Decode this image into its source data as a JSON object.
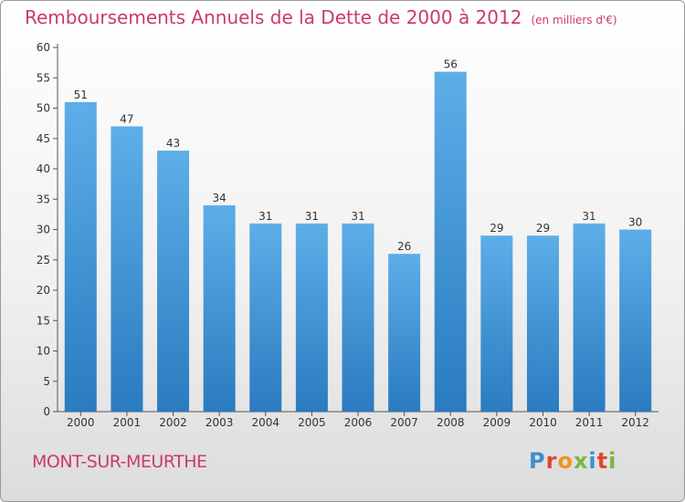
{
  "title": "Remboursements Annuels de la Dette de 2000 à 2012",
  "subtitle": "(en milliers d'€)",
  "commune": "MONT-SUR-MEURTHE",
  "logo": "Proxiti",
  "colors": {
    "title": "#cc3a6b",
    "bar_top": "#5daee8",
    "bar_bottom": "#2a7bc0",
    "logo_letters": [
      "#3a8fd0",
      "#e0462e",
      "#f19422",
      "#7ab83a",
      "#3a8fd0",
      "#e0462e",
      "#7ab83a"
    ]
  },
  "chart_data": {
    "type": "bar",
    "title": "Remboursements Annuels de la Dette de 2000 à 2012",
    "subtitle": "(en milliers d'€)",
    "categories": [
      "2000",
      "2001",
      "2002",
      "2003",
      "2004",
      "2005",
      "2006",
      "2007",
      "2008",
      "2009",
      "2010",
      "2011",
      "2012"
    ],
    "values": [
      51,
      47,
      43,
      34,
      31,
      31,
      31,
      26,
      56,
      29,
      29,
      31,
      30
    ],
    "ylim": [
      0,
      60
    ],
    "yticks": [
      0,
      5,
      10,
      15,
      20,
      25,
      30,
      35,
      40,
      45,
      50,
      55,
      60
    ],
    "grid": false,
    "data_labels": true
  }
}
